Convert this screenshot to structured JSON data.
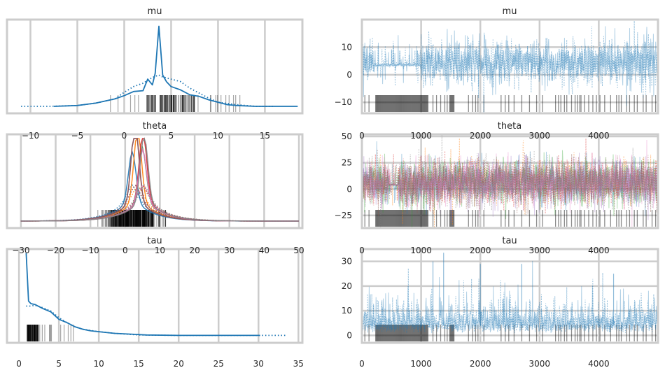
{
  "figure": {
    "type": "arviz-traceplot",
    "style": "seaborn-whitegrid"
  },
  "chart_data": [
    {
      "type": "line",
      "name": "mu-posterior",
      "title": "mu",
      "xticks": [
        -10,
        -5,
        0,
        5,
        10,
        15
      ],
      "xlim": [
        -12.5,
        19
      ],
      "color": "#1f77b4",
      "peak_x": 3.7,
      "series": [
        {
          "name": "chain-0",
          "style": "solid",
          "x": [
            -7.5,
            -5,
            -3,
            -1,
            0,
            1,
            2,
            2.5,
            3,
            3.3,
            3.7,
            4.1,
            4.5,
            5,
            6,
            7,
            8,
            9,
            10,
            11,
            12,
            14,
            16,
            18.5
          ],
          "density": [
            0.0,
            0.01,
            0.04,
            0.09,
            0.13,
            0.18,
            0.19,
            0.33,
            0.26,
            0.4,
            0.97,
            0.38,
            0.3,
            0.24,
            0.2,
            0.14,
            0.12,
            0.08,
            0.05,
            0.02,
            0.01,
            0.0,
            0.0,
            0.0
          ]
        },
        {
          "name": "chain-1",
          "style": "dotted",
          "x": [
            -11,
            -8,
            -5,
            -3,
            -1,
            0,
            1,
            2,
            3,
            3.7,
            4,
            5,
            6,
            7,
            8,
            9,
            10,
            12,
            14,
            16
          ],
          "density": [
            0.0,
            0.0,
            0.01,
            0.04,
            0.09,
            0.17,
            0.24,
            0.28,
            0.35,
            0.38,
            0.36,
            0.33,
            0.3,
            0.22,
            0.16,
            0.1,
            0.05,
            0.02,
            0.0,
            0.0
          ]
        }
      ],
      "rug": "divergences"
    },
    {
      "type": "line",
      "name": "theta-posterior",
      "title": "theta",
      "xticks": [
        -30,
        -20,
        -10,
        0,
        10,
        20,
        30,
        40,
        50
      ],
      "xlim": [
        -34,
        51
      ],
      "palette": [
        "#1f77b4",
        "#ff7f0e",
        "#2ca02c",
        "#d62728",
        "#9467bd",
        "#8c564b",
        "#e377c2",
        "#7f7f7f"
      ],
      "series_count": 8,
      "peak_x": 4.5,
      "range_x": [
        -30,
        50
      ]
    },
    {
      "type": "line",
      "name": "tau-posterior",
      "title": "tau",
      "xticks": [
        0,
        5,
        10,
        15,
        20,
        25,
        30,
        35
      ],
      "xlim": [
        -1.5,
        35.5
      ],
      "color": "#1f77b4",
      "series": [
        {
          "name": "chain-0",
          "style": "solid",
          "x": [
            0.9,
            1.2,
            1.5,
            2,
            3,
            4,
            5,
            6,
            7,
            8,
            9,
            10,
            12,
            14,
            16,
            20,
            25,
            30.2
          ],
          "density": [
            1.0,
            0.42,
            0.39,
            0.38,
            0.33,
            0.29,
            0.2,
            0.16,
            0.11,
            0.08,
            0.06,
            0.05,
            0.03,
            0.02,
            0.01,
            0.005,
            0.005,
            0.005
          ]
        },
        {
          "name": "chain-1",
          "style": "dotted",
          "x": [
            0.9,
            1.5,
            2,
            3,
            4,
            5,
            6,
            7,
            8,
            10,
            12,
            15,
            20,
            25,
            30,
            33.5
          ],
          "density": [
            0.36,
            0.36,
            0.37,
            0.34,
            0.3,
            0.22,
            0.16,
            0.11,
            0.08,
            0.05,
            0.03,
            0.01,
            0.005,
            0.005,
            0.005,
            0.005
          ]
        }
      ]
    },
    {
      "type": "line",
      "name": "mu-trace",
      "title": "mu",
      "xticks": [
        0,
        1000,
        2000,
        3000,
        4000
      ],
      "yticks": [
        -10,
        0,
        10
      ],
      "xlim": [
        0,
        5000
      ],
      "ylim": [
        -14,
        20
      ],
      "n_draws": 5000,
      "color": "#1f77b4",
      "typical_range": [
        -3,
        12
      ],
      "stuck_segment": {
        "from": 200,
        "to": 1000,
        "value": 3.5
      }
    },
    {
      "type": "line",
      "name": "theta-trace",
      "title": "theta",
      "xticks": [
        0,
        1000,
        2000,
        3000,
        4000
      ],
      "yticks": [
        -25,
        0,
        25,
        50
      ],
      "xlim": [
        0,
        5000
      ],
      "ylim": [
        -37,
        52
      ],
      "n_draws": 5000,
      "typical_range": [
        -12,
        25
      ],
      "stuck_segment": {
        "from": 450,
        "to": 620,
        "value": 4
      }
    },
    {
      "type": "line",
      "name": "tau-trace",
      "title": "tau",
      "xticks": [
        0,
        1000,
        2000,
        3000,
        4000
      ],
      "yticks": [
        0,
        10,
        20,
        30
      ],
      "xlim": [
        0,
        5000
      ],
      "ylim": [
        -3,
        35
      ],
      "n_draws": 5000,
      "typical_range": [
        1,
        15
      ],
      "spikes": [
        [
          1200,
          30
        ],
        [
          1380,
          33.5
        ],
        [
          2000,
          29
        ],
        [
          2700,
          29
        ],
        [
          4250,
          25
        ]
      ]
    }
  ],
  "divergence_rug": {
    "dense_segments": [
      [
        230,
        1120
      ],
      [
        1480,
        1560
      ]
    ],
    "sparse_draws": [
      50,
      120,
      1200,
      1260,
      1330,
      1400,
      1440,
      1800,
      1870,
      1920,
      1960,
      2060,
      2350,
      2420,
      2480,
      2570,
      2700,
      2830,
      2950,
      3050,
      3270,
      3320,
      3360,
      3420,
      3460,
      3540,
      3600,
      3640,
      3680,
      3700,
      3760,
      3830,
      3900,
      3960,
      4020,
      4100,
      4200,
      4300,
      4340,
      4380,
      4470,
      4520,
      4600,
      4650,
      4750,
      4800,
      4900,
      4960
    ]
  }
}
